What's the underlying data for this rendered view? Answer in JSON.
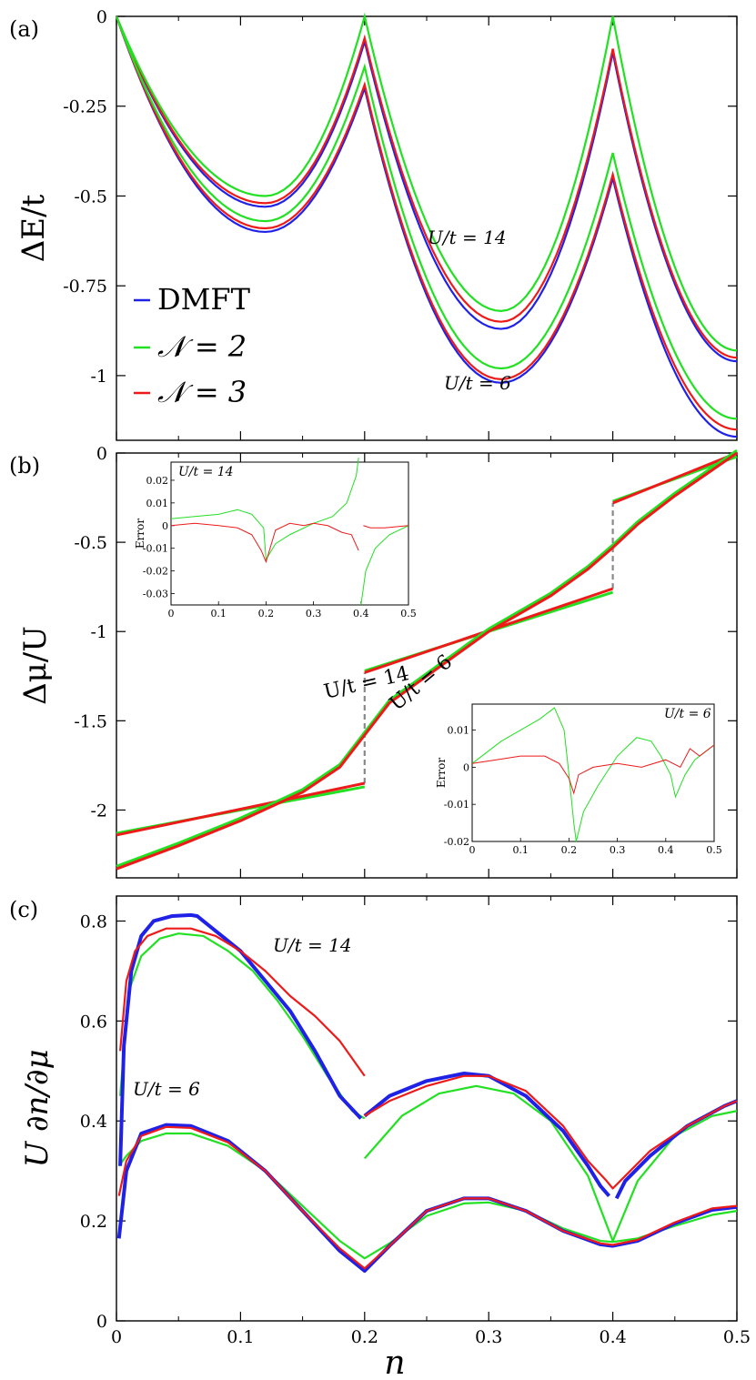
{
  "colors": {
    "DMFT": "#1f22e6",
    "N2": "#22e022",
    "N3": "#ee1a1a",
    "dashed": "#888888"
  },
  "legend": [
    {
      "key": "DMFT",
      "label": "DMFT"
    },
    {
      "key": "N2",
      "label": "𝒩 = 2"
    },
    {
      "key": "N3",
      "label": "𝒩 = 3"
    }
  ],
  "xlabel": "n",
  "chart_data": [
    {
      "panel": "(a)",
      "type": "line",
      "ylabel": "ΔE/t",
      "xlim": [
        0,
        0.5
      ],
      "ylim": [
        -1.18,
        0
      ],
      "xticks": [
        "0",
        "0.1",
        "0.2",
        "0.3",
        "0.4",
        "0.5"
      ],
      "yticks": [
        "0",
        "-0.25",
        "-0.5",
        "-0.75",
        "-1"
      ],
      "annotations": [
        "U/t = 14",
        "U/t = 6"
      ],
      "groups": [
        {
          "U_over_t": 14,
          "peaks": [
            {
              "key": "N2",
              "at_0_2": 0.0,
              "at_0_4": 0.0,
              "min1": -0.5,
              "min2": -0.82,
              "end": -0.93
            },
            {
              "key": "N3",
              "at_0_2": -0.06,
              "at_0_4": -0.09,
              "min1": -0.52,
              "min2": -0.85,
              "end": -0.95
            },
            {
              "key": "DMFT",
              "at_0_2": -0.07,
              "at_0_4": -0.1,
              "min1": -0.53,
              "min2": -0.87,
              "end": -0.96
            }
          ]
        },
        {
          "U_over_t": 6,
          "peaks": [
            {
              "key": "N2",
              "at_0_2": -0.14,
              "at_0_4": -0.38,
              "min1": -0.57,
              "min2": -0.98,
              "end": -1.12
            },
            {
              "key": "N3",
              "at_0_2": -0.19,
              "at_0_4": -0.44,
              "min1": -0.59,
              "min2": -1.01,
              "end": -1.15
            },
            {
              "key": "DMFT",
              "at_0_2": -0.2,
              "at_0_4": -0.45,
              "min1": -0.6,
              "min2": -1.02,
              "end": -1.17
            }
          ]
        }
      ]
    },
    {
      "panel": "(b)",
      "type": "line",
      "ylabel": "Δμ/U",
      "xlim": [
        0,
        0.5
      ],
      "ylim": [
        -2.38,
        0
      ],
      "xticks": [
        "0",
        "0.1",
        "0.2",
        "0.3",
        "0.4",
        "0.5"
      ],
      "yticks": [
        "0",
        "-0.5",
        "-1",
        "-1.5",
        "-2"
      ],
      "annotations": [
        "U/t = 14",
        "U/t = 6"
      ],
      "U14_segments": [
        {
          "x": [
            0,
            0.2
          ],
          "y": [
            -2.14,
            -1.85
          ]
        },
        {
          "x": [
            0.2,
            0.4
          ],
          "y": [
            -1.23,
            -0.76
          ]
        },
        {
          "x": [
            0.4,
            0.5
          ],
          "y": [
            -0.28,
            0.0
          ]
        }
      ],
      "U6_curve": {
        "x": [
          0,
          0.05,
          0.1,
          0.15,
          0.18,
          0.2,
          0.22,
          0.25,
          0.3,
          0.35,
          0.38,
          0.4,
          0.42,
          0.45,
          0.5
        ],
        "y": [
          -2.33,
          -2.2,
          -2.06,
          -1.9,
          -1.76,
          -1.58,
          -1.4,
          -1.25,
          -1.0,
          -0.8,
          -0.65,
          -0.53,
          -0.4,
          -0.24,
          0.0
        ]
      },
      "insets": [
        {
          "title": "U/t = 14",
          "ylabel": "Error",
          "xticks": [
            "0",
            "0.1",
            "0.2",
            "0.3",
            "0.4",
            "0.5"
          ],
          "yticks": [
            "0.02",
            "0.01",
            "0",
            "-0.01",
            "-0.02",
            "-0.03"
          ],
          "xlim": [
            0,
            0.5
          ],
          "ylim": [
            -0.035,
            0.028
          ],
          "N2": {
            "x": [
              0,
              0.05,
              0.1,
              0.14,
              0.17,
              0.195,
              0.2,
              0.22,
              0.25,
              0.3,
              0.34,
              0.37,
              0.39,
              0.395,
              null,
              0.4,
              0.41,
              0.43,
              0.46,
              0.5
            ],
            "y": [
              0.003,
              0.004,
              0.005,
              0.007,
              0.005,
              -0.001,
              -0.015,
              -0.008,
              -0.004,
              0.001,
              0.004,
              0.01,
              0.022,
              0.03,
              null,
              -0.035,
              -0.02,
              -0.01,
              -0.004,
              0.0
            ]
          },
          "N3": {
            "x": [
              0,
              0.05,
              0.1,
              0.14,
              0.17,
              0.19,
              0.2,
              0.22,
              0.25,
              0.28,
              0.3,
              0.33,
              0.36,
              0.38,
              0.395,
              null,
              0.405,
              0.42,
              0.45,
              0.5
            ],
            "y": [
              0.0,
              0.001,
              0.0,
              -0.001,
              -0.004,
              -0.011,
              -0.016,
              -0.002,
              0.001,
              0.0,
              0.001,
              0.0,
              -0.003,
              -0.004,
              -0.011,
              null,
              0.0,
              -0.001,
              -0.001,
              0.0
            ]
          }
        },
        {
          "title": "U/t = 6",
          "ylabel": "Error",
          "xticks": [
            "0",
            "0.1",
            "0.2",
            "0.3",
            "0.4",
            "0.5"
          ],
          "yticks": [
            "0.01",
            "0",
            "-0.01",
            "-0.02"
          ],
          "xlim": [
            0,
            0.5
          ],
          "ylim": [
            -0.02,
            0.017
          ],
          "N2": {
            "x": [
              0,
              0.03,
              0.06,
              0.1,
              0.14,
              0.17,
              0.19,
              0.2,
              0.21,
              0.215,
              0.23,
              0.26,
              0.3,
              0.34,
              0.37,
              0.39,
              0.41,
              0.42,
              0.44,
              0.46,
              0.48,
              0.5
            ],
            "y": [
              0.001,
              0.004,
              0.007,
              0.01,
              0.013,
              0.016,
              0.01,
              -0.002,
              -0.015,
              -0.02,
              -0.012,
              -0.005,
              0.003,
              0.008,
              0.007,
              0.003,
              -0.002,
              -0.008,
              -0.002,
              0.002,
              0.004,
              0.006
            ]
          },
          "N3": {
            "x": [
              0,
              0.05,
              0.1,
              0.15,
              0.18,
              0.2,
              0.21,
              0.22,
              0.25,
              0.3,
              0.35,
              0.4,
              0.43,
              0.45,
              0.47,
              0.5
            ],
            "y": [
              0.001,
              0.002,
              0.003,
              0.003,
              0.001,
              -0.003,
              -0.007,
              -0.002,
              0.0,
              0.001,
              0.0,
              0.002,
              0.0,
              0.005,
              0.003,
              0.006
            ]
          }
        }
      ]
    },
    {
      "panel": "(c)",
      "type": "line",
      "ylabel": "U ∂n/∂μ",
      "xlim": [
        0,
        0.5
      ],
      "ylim": [
        0,
        0.85
      ],
      "xticks": [
        "0",
        "0.1",
        "0.2",
        "0.3",
        "0.4",
        "0.5"
      ],
      "yticks": [
        "0",
        "0.2",
        "0.4",
        "0.6",
        "0.8"
      ],
      "annotations": [
        "U/t = 14",
        "U/t = 6"
      ],
      "series": [
        {
          "key": "DMFT",
          "U_over_t": 14,
          "x": [
            0.003,
            0.006,
            0.012,
            0.02,
            0.03,
            0.045,
            0.06,
            0.065,
            0.08,
            0.1,
            0.12,
            0.14,
            0.16,
            0.18,
            0.197,
            null,
            0.2,
            0.22,
            0.25,
            0.28,
            0.3,
            0.33,
            0.36,
            0.38,
            0.39,
            0.397,
            null,
            0.403,
            0.41,
            0.43,
            0.46,
            0.49,
            0.5
          ],
          "y": [
            0.31,
            0.55,
            0.7,
            0.77,
            0.8,
            0.81,
            0.812,
            0.81,
            0.78,
            0.74,
            0.68,
            0.62,
            0.54,
            0.45,
            0.405,
            null,
            0.41,
            0.45,
            0.48,
            0.495,
            0.49,
            0.45,
            0.38,
            0.31,
            0.27,
            0.25,
            null,
            0.245,
            0.28,
            0.33,
            0.39,
            0.43,
            0.44
          ]
        },
        {
          "key": "N3",
          "U_over_t": 14,
          "x": [
            0.003,
            0.008,
            0.015,
            0.025,
            0.04,
            0.06,
            0.08,
            0.1,
            0.12,
            0.14,
            0.16,
            0.18,
            0.2,
            null,
            0.2,
            0.22,
            0.25,
            0.28,
            0.3,
            0.33,
            0.36,
            0.38,
            0.395,
            0.4,
            0.41,
            0.43,
            0.46,
            0.49,
            0.5
          ],
          "y": [
            0.54,
            0.68,
            0.74,
            0.77,
            0.785,
            0.785,
            0.77,
            0.74,
            0.7,
            0.65,
            0.61,
            0.56,
            0.49,
            null,
            0.41,
            0.44,
            0.47,
            0.49,
            0.49,
            0.46,
            0.39,
            0.32,
            0.28,
            0.265,
            0.29,
            0.34,
            0.39,
            0.43,
            0.44
          ]
        },
        {
          "key": "N2",
          "U_over_t": 14,
          "x": [
            0.003,
            0.01,
            0.02,
            0.035,
            0.05,
            0.07,
            0.09,
            0.11,
            0.13,
            0.15,
            0.17,
            0.19,
            0.2,
            null,
            0.2,
            0.23,
            0.26,
            0.29,
            0.32,
            0.35,
            0.38,
            0.4,
            0.42,
            0.45,
            0.48,
            0.5
          ],
          "y": [
            0.45,
            0.66,
            0.73,
            0.765,
            0.775,
            0.77,
            0.74,
            0.7,
            0.64,
            0.57,
            0.49,
            0.42,
            0.405,
            null,
            0.325,
            0.41,
            0.455,
            0.47,
            0.455,
            0.4,
            0.29,
            0.16,
            0.28,
            0.37,
            0.41,
            0.42
          ]
        },
        {
          "key": "DMFT",
          "U_over_t": 6,
          "x": [
            0.002,
            0.008,
            0.02,
            0.04,
            0.06,
            0.09,
            0.12,
            0.15,
            0.18,
            0.2,
            0.22,
            0.25,
            0.28,
            0.3,
            0.33,
            0.36,
            0.39,
            0.4,
            0.42,
            0.45,
            0.48,
            0.5
          ],
          "y": [
            0.165,
            0.3,
            0.375,
            0.392,
            0.39,
            0.36,
            0.3,
            0.22,
            0.14,
            0.1,
            0.15,
            0.22,
            0.245,
            0.245,
            0.22,
            0.18,
            0.153,
            0.15,
            0.16,
            0.195,
            0.222,
            0.228
          ]
        },
        {
          "key": "N3",
          "U_over_t": 6,
          "x": [
            0.002,
            0.008,
            0.02,
            0.04,
            0.06,
            0.09,
            0.12,
            0.15,
            0.18,
            0.2,
            0.22,
            0.25,
            0.28,
            0.3,
            0.33,
            0.36,
            0.39,
            0.4,
            0.42,
            0.45,
            0.48,
            0.5
          ],
          "y": [
            0.25,
            0.32,
            0.37,
            0.388,
            0.386,
            0.357,
            0.3,
            0.22,
            0.145,
            0.105,
            0.15,
            0.22,
            0.245,
            0.245,
            0.22,
            0.18,
            0.155,
            0.152,
            0.162,
            0.197,
            0.225,
            0.23
          ]
        },
        {
          "key": "N2",
          "U_over_t": 6,
          "x": [
            0.002,
            0.008,
            0.02,
            0.04,
            0.06,
            0.09,
            0.12,
            0.15,
            0.18,
            0.2,
            0.22,
            0.25,
            0.28,
            0.3,
            0.33,
            0.36,
            0.39,
            0.4,
            0.42,
            0.45,
            0.48,
            0.5
          ],
          "y": [
            0.31,
            0.33,
            0.36,
            0.375,
            0.375,
            0.35,
            0.3,
            0.23,
            0.16,
            0.125,
            0.155,
            0.21,
            0.235,
            0.237,
            0.22,
            0.185,
            0.16,
            0.158,
            0.165,
            0.19,
            0.212,
            0.22
          ]
        }
      ]
    }
  ]
}
